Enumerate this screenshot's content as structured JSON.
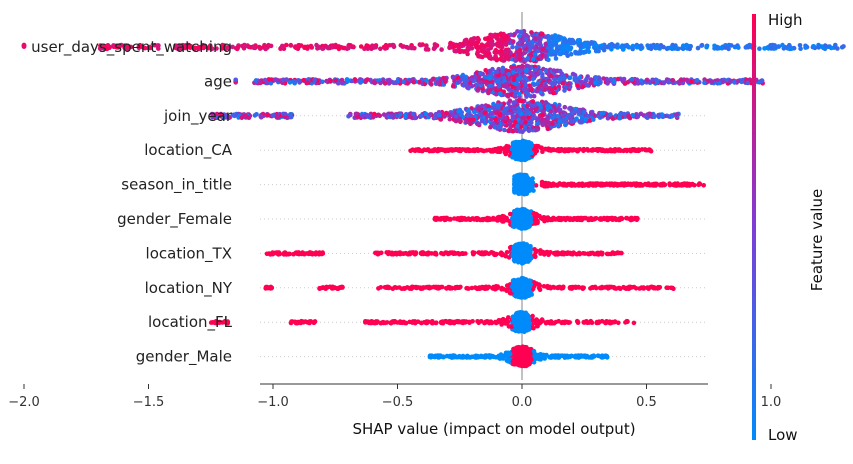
{
  "chart_data": {
    "type": "scatter",
    "subtype": "shap-beeswarm",
    "title": "",
    "xlabel": "SHAP value (impact on model output)",
    "xlim": [
      -2.15,
      1.5
    ],
    "xticks": [
      -2.0,
      -1.5,
      -1.0,
      -0.5,
      0.0,
      0.5,
      1.0
    ],
    "xtick_labels": [
      "−2.0",
      "−1.5",
      "−1.0",
      "−0.5",
      "0.0",
      "0.5",
      "1.0"
    ],
    "colorbar": {
      "label": "Feature value",
      "high_label": "High",
      "low_label": "Low",
      "high_color": "#ff0052",
      "mid_color": "#7e3dd6",
      "low_color": "#008bfb"
    },
    "features": [
      {
        "name": "user_days_spent_watching",
        "min": -2.0,
        "max": 1.3,
        "spread": "wide",
        "high_side": "negative",
        "segments": [
          [
            -2.0,
            -2.0
          ],
          [
            -1.7,
            -1.45
          ],
          [
            -1.4,
            1.3
          ]
        ]
      },
      {
        "name": "age",
        "min": -1.15,
        "max": 0.97,
        "spread": "wide",
        "high_side": "mixed",
        "segments": [
          [
            -1.15,
            -1.15
          ],
          [
            -1.08,
            0.97
          ]
        ]
      },
      {
        "name": "join_year",
        "min": -1.25,
        "max": 0.63,
        "spread": "wide",
        "high_side": "mixed",
        "segments": [
          [
            -1.25,
            -0.92
          ],
          [
            -0.7,
            0.63
          ]
        ]
      },
      {
        "name": "location_CA",
        "min": -0.45,
        "max": 0.52,
        "spread": "narrow",
        "high_side": "both",
        "segments": [
          [
            -0.45,
            0.52
          ]
        ]
      },
      {
        "name": "season_in_title",
        "min": -0.03,
        "max": 0.73,
        "spread": "narrow",
        "high_side": "positive",
        "segments": [
          [
            -0.03,
            0.02
          ],
          [
            0.08,
            0.73
          ]
        ]
      },
      {
        "name": "gender_Female",
        "min": -0.35,
        "max": 0.47,
        "spread": "narrow",
        "high_side": "both",
        "segments": [
          [
            -0.35,
            0.47
          ]
        ]
      },
      {
        "name": "location_TX",
        "min": -1.03,
        "max": 0.4,
        "spread": "narrow",
        "high_side": "both",
        "segments": [
          [
            -1.03,
            -0.8
          ],
          [
            -0.6,
            0.4
          ]
        ]
      },
      {
        "name": "location_NY",
        "min": -1.03,
        "max": 0.61,
        "spread": "narrow",
        "high_side": "both",
        "segments": [
          [
            -1.03,
            -1.0
          ],
          [
            -0.83,
            -0.72
          ],
          [
            -0.58,
            0.61
          ]
        ]
      },
      {
        "name": "location_FL",
        "min": -1.25,
        "max": 0.45,
        "spread": "narrow",
        "high_side": "both",
        "segments": [
          [
            -1.25,
            -1.18
          ],
          [
            -0.93,
            -0.82
          ],
          [
            -0.63,
            0.45
          ]
        ]
      },
      {
        "name": "gender_Male",
        "min": -0.37,
        "max": 0.35,
        "spread": "narrow",
        "high_side": "center",
        "segments": [
          [
            -0.37,
            0.35
          ]
        ]
      }
    ]
  }
}
